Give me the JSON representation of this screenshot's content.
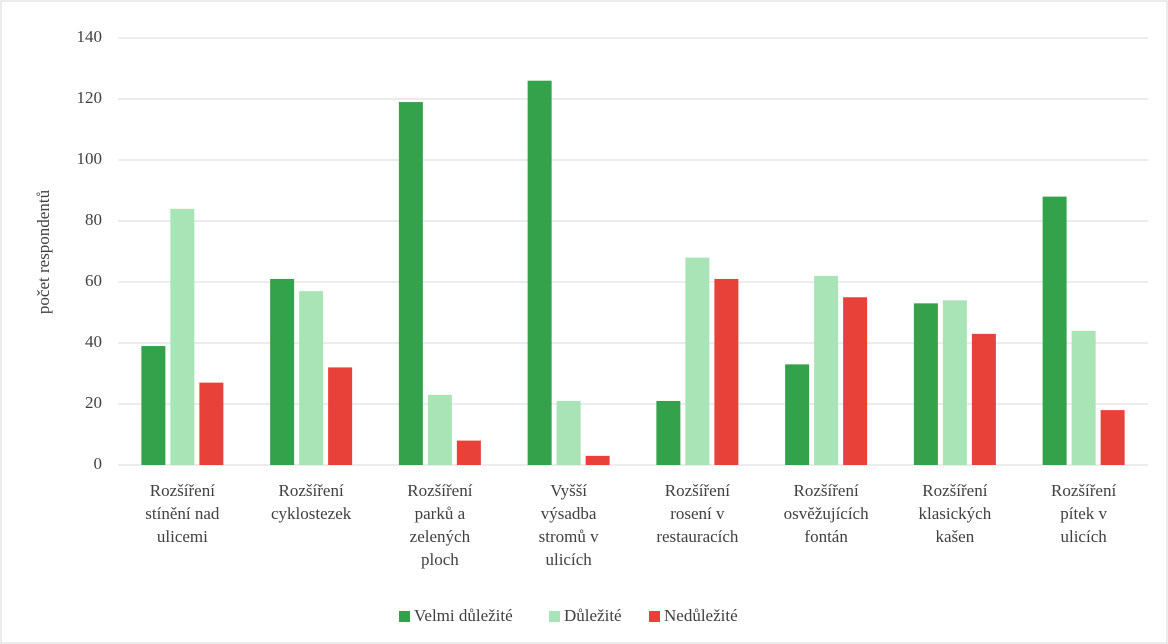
{
  "chart_data": {
    "type": "bar",
    "y_label": "počet respondentů",
    "categories": [
      [
        "Rozšíření",
        "stínění nad",
        "ulicemi"
      ],
      [
        "Rozšíření",
        "cyklostezek"
      ],
      [
        "Rozšíření",
        "parků a",
        "zelených",
        "ploch"
      ],
      [
        "Vyšší",
        "výsadba",
        "stromů v",
        "ulicích"
      ],
      [
        "Rozšíření",
        "rosení v",
        "restauracích"
      ],
      [
        "Rozšíření",
        "osvěžujících",
        "fontán"
      ],
      [
        "Rozšíření",
        "klasických",
        "kašen"
      ],
      [
        "Rozšíření",
        "pítek v",
        "ulicích"
      ]
    ],
    "series": [
      {
        "name": "Velmi důležité",
        "color": "#34a24a",
        "values": [
          39,
          61,
          119,
          126,
          21,
          33,
          53,
          88
        ]
      },
      {
        "name": "Důležité",
        "color": "#a8e4b6",
        "values": [
          84,
          57,
          23,
          21,
          68,
          62,
          54,
          44
        ]
      },
      {
        "name": "Nedůležité",
        "color": "#e8413a",
        "values": [
          27,
          32,
          8,
          3,
          61,
          55,
          43,
          18
        ]
      }
    ],
    "ylim": [
      0,
      140
    ],
    "yticks": [
      0,
      20,
      40,
      60,
      80,
      100,
      120,
      140
    ],
    "grid": true,
    "legend": "bottom"
  }
}
